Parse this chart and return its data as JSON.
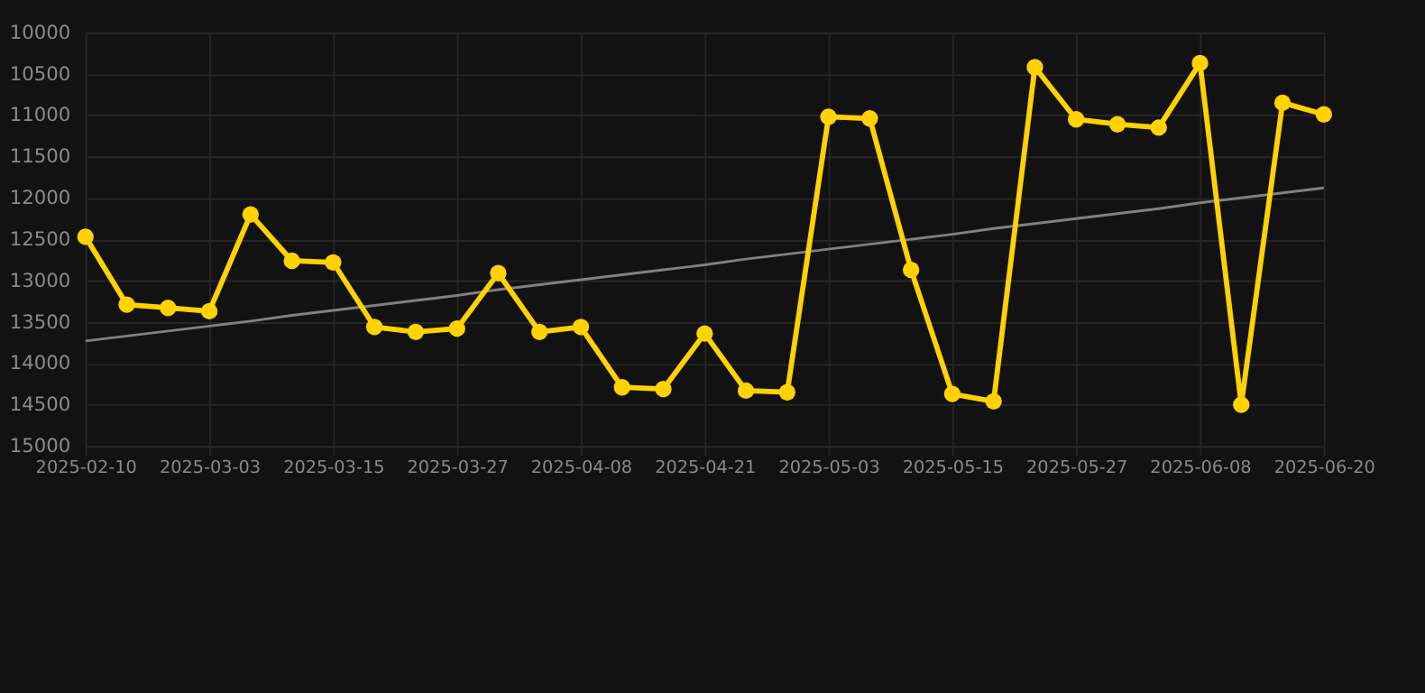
{
  "chart_data": {
    "type": "line",
    "categories": [
      "2025-02-10",
      null,
      null,
      "2025-03-03",
      null,
      null,
      "2025-03-15",
      null,
      null,
      "2025-03-27",
      null,
      null,
      "2025-04-08",
      null,
      null,
      "2025-04-21",
      null,
      null,
      "2025-05-03",
      null,
      null,
      "2025-05-15",
      null,
      null,
      "2025-05-27",
      null,
      null,
      "2025-06-08",
      null,
      null,
      "2025-06-20"
    ],
    "series": [
      {
        "color": "#ffd200",
        "marker": "circle",
        "values": [
          12470,
          13290,
          13330,
          13370,
          12200,
          12760,
          12780,
          13560,
          13620,
          13580,
          12910,
          13620,
          13560,
          14290,
          14310,
          13640,
          14330,
          14350,
          11020,
          11040,
          12870,
          14370,
          14460,
          10420,
          11050,
          11110,
          11150,
          10370,
          14500,
          10850,
          10990
        ]
      },
      {
        "color": "#808080",
        "marker": "none",
        "values": [
          13730,
          13670,
          13610,
          13550,
          13490,
          13420,
          13360,
          13300,
          13240,
          13180,
          13110,
          13050,
          12990,
          12930,
          12870,
          12810,
          12740,
          12680,
          12620,
          12560,
          12500,
          12440,
          12370,
          12310,
          12250,
          12190,
          12130,
          12060,
          12000,
          11940,
          11880
        ]
      }
    ],
    "ylim": [
      15000,
      10000
    ],
    "yticks": [
      10000,
      10500,
      11000,
      11500,
      12000,
      12500,
      13000,
      13500,
      14000,
      14500,
      15000
    ],
    "grid": true
  }
}
